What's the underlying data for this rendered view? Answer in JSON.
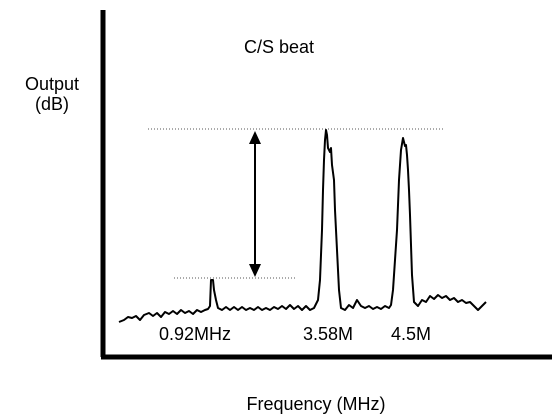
{
  "diagram": {
    "title": "C/S beat",
    "y_axis_label_line1": "Output",
    "y_axis_label_line2": "(dB)",
    "x_axis_label": "Frequency (MHz)",
    "peaks": [
      {
        "label": "0.92MHz"
      },
      {
        "label": "3.58M"
      },
      {
        "label": "4.5M"
      }
    ],
    "colors": {
      "trace": "#000000",
      "reference_lines": "#555555",
      "background": "#ffffff"
    }
  }
}
